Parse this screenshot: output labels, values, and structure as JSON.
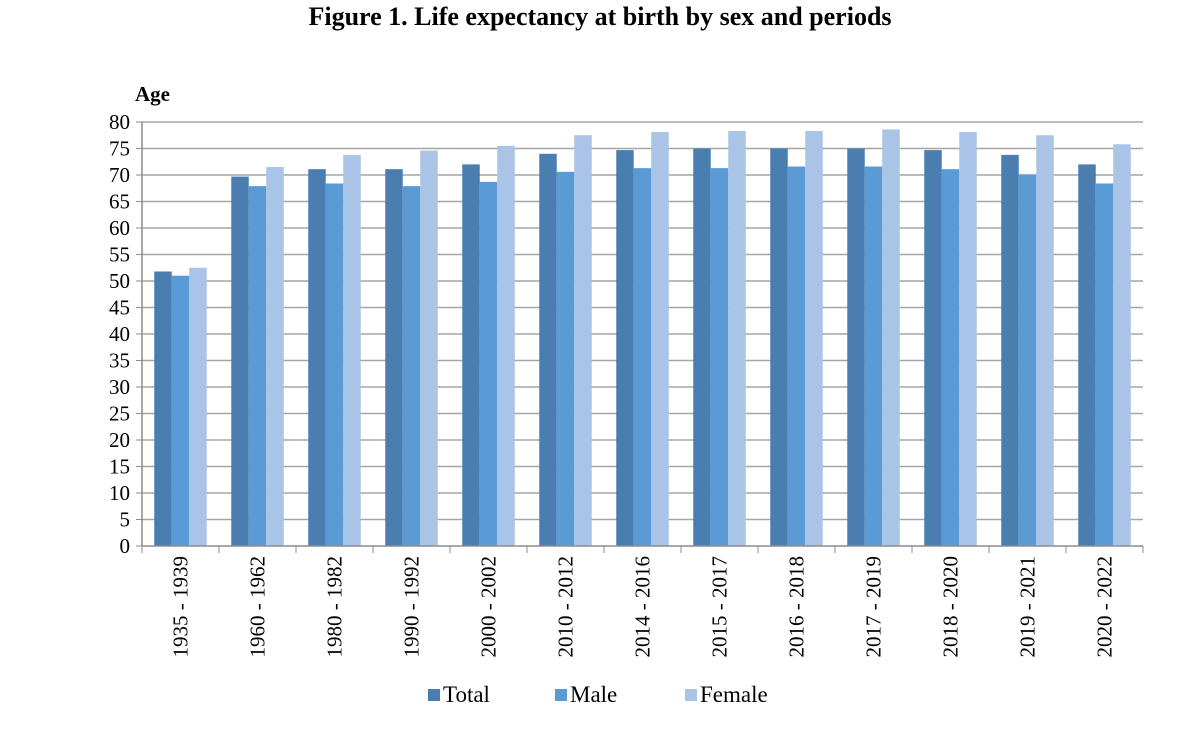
{
  "chart_data": {
    "type": "bar",
    "title": "Figure 1. Life expectancy at birth by sex and periods",
    "ylabel": "Age",
    "xlabel": "",
    "ylim": [
      0,
      80
    ],
    "yticks": [
      0,
      5,
      10,
      15,
      20,
      25,
      30,
      35,
      40,
      45,
      50,
      55,
      60,
      65,
      70,
      75,
      80
    ],
    "grid": true,
    "legend_position": "bottom",
    "categories": [
      "1935 - 1939",
      "1960 - 1962",
      "1980 - 1982",
      "1990 - 1992",
      "2000 - 2002",
      "2010 - 2012",
      "2014 - 2016",
      "2015 - 2017",
      "2016 - 2018",
      "2017 - 2019",
      "2018 - 2020",
      "2019 - 2021",
      "2020 - 2022"
    ],
    "series": [
      {
        "name": "Total",
        "color": "#4a7eb0",
        "values": [
          51.8,
          69.7,
          71.1,
          71.1,
          72.0,
          74.0,
          74.7,
          75.0,
          75.0,
          75.0,
          74.7,
          73.8,
          72.0
        ]
      },
      {
        "name": "Male",
        "color": "#5b9bd5",
        "values": [
          51.0,
          67.9,
          68.4,
          67.9,
          68.7,
          70.6,
          71.3,
          71.3,
          71.6,
          71.6,
          71.1,
          70.1,
          68.4
        ]
      },
      {
        "name": "Female",
        "color": "#a9c4e6",
        "values": [
          52.5,
          71.5,
          73.8,
          74.6,
          75.5,
          77.5,
          78.1,
          78.3,
          78.3,
          78.6,
          78.1,
          77.5,
          75.8
        ]
      }
    ]
  }
}
